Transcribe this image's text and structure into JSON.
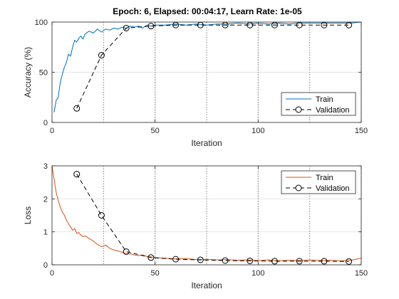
{
  "window": {
    "title": "Epoch: 6, Elapsed: 00:04:17, Learn Rate: 1e-05"
  },
  "colors": {
    "train_accuracy": "#0072BD",
    "train_loss": "#D95319",
    "validation": "#000000",
    "epoch_marker": "#808080",
    "grid": "#E6E6E6",
    "axes": "#262626"
  },
  "chart_data": [
    {
      "type": "line",
      "title": "Epoch: 6, Elapsed: 00:04:17, Learn Rate: 1e-05",
      "xlabel": "Iteration",
      "ylabel": "Accuracy (%)",
      "xlim": [
        0,
        150
      ],
      "ylim": [
        0,
        100
      ],
      "xticks": [
        0,
        50,
        100,
        150
      ],
      "yticks": [
        0,
        50,
        100
      ],
      "grid": true,
      "epoch_boundaries": [
        25,
        50,
        75,
        100,
        125,
        150
      ],
      "legend": {
        "placement": "lower-right",
        "entries": [
          "Train",
          "Validation"
        ]
      },
      "series": [
        {
          "name": "Train",
          "style": "solid",
          "x": [
            1,
            2,
            3,
            4,
            5,
            6,
            7,
            8,
            9,
            10,
            11,
            12,
            13,
            14,
            15,
            16,
            18,
            20,
            22,
            24,
            26,
            28,
            30,
            32,
            34,
            36,
            38,
            40,
            42,
            44,
            46,
            48,
            50,
            55,
            60,
            65,
            70,
            75,
            80,
            85,
            90,
            95,
            100,
            105,
            110,
            115,
            120,
            125,
            130,
            135,
            140,
            145,
            150
          ],
          "y": [
            10,
            22,
            25,
            40,
            48,
            55,
            60,
            68,
            66,
            75,
            82,
            80,
            84,
            86,
            83,
            88,
            91,
            89,
            93,
            90,
            93,
            92,
            94,
            93,
            95,
            94,
            96,
            95,
            96,
            94,
            97,
            96,
            97,
            97,
            98,
            97,
            98,
            97,
            98,
            98,
            99,
            98,
            99,
            98,
            99,
            98,
            99,
            99,
            99,
            99,
            99,
            99,
            100
          ]
        },
        {
          "name": "Validation",
          "style": "dashed",
          "marker": "circle",
          "x": [
            12,
            24,
            36,
            48,
            60,
            72,
            84,
            96,
            108,
            120,
            132,
            144
          ],
          "y": [
            14,
            67,
            94,
            96,
            97,
            97,
            97,
            97,
            97,
            97,
            97,
            97
          ]
        }
      ]
    },
    {
      "type": "line",
      "xlabel": "Iteration",
      "ylabel": "Loss",
      "xlim": [
        0,
        150
      ],
      "ylim": [
        0,
        3
      ],
      "xticks": [
        0,
        50,
        100,
        150
      ],
      "yticks": [
        0,
        1,
        2,
        3
      ],
      "grid": true,
      "epoch_boundaries": [
        25,
        50,
        75,
        100,
        125,
        150
      ],
      "legend": {
        "placement": "top-right",
        "entries": [
          "Train",
          "Validation"
        ]
      },
      "series": [
        {
          "name": "Train",
          "style": "solid",
          "x": [
            0,
            1,
            2,
            3,
            4,
            5,
            6,
            7,
            8,
            9,
            10,
            11,
            12,
            13,
            14,
            15,
            16,
            18,
            20,
            22,
            24,
            26,
            28,
            30,
            32,
            34,
            36,
            38,
            40,
            42,
            44,
            46,
            48,
            50,
            55,
            60,
            65,
            70,
            75,
            80,
            85,
            90,
            95,
            100,
            105,
            110,
            115,
            120,
            125,
            130,
            135,
            140,
            145,
            150
          ],
          "y": [
            3.0,
            2.6,
            2.2,
            1.95,
            1.75,
            1.6,
            1.5,
            1.35,
            1.25,
            1.15,
            1.05,
            1.1,
            0.95,
            0.98,
            0.9,
            0.85,
            0.88,
            0.8,
            0.72,
            0.62,
            0.55,
            0.6,
            0.5,
            0.45,
            0.42,
            0.38,
            0.35,
            0.33,
            0.3,
            0.28,
            0.3,
            0.25,
            0.24,
            0.22,
            0.2,
            0.18,
            0.19,
            0.16,
            0.17,
            0.15,
            0.16,
            0.14,
            0.15,
            0.13,
            0.15,
            0.12,
            0.14,
            0.13,
            0.15,
            0.13,
            0.14,
            0.12,
            0.14,
            0.2
          ]
        },
        {
          "name": "Validation",
          "style": "dashed",
          "marker": "circle",
          "x": [
            12,
            24,
            36,
            48,
            60,
            72,
            84,
            96,
            108,
            120,
            132,
            144
          ],
          "y": [
            2.75,
            1.5,
            0.4,
            0.22,
            0.17,
            0.15,
            0.13,
            0.12,
            0.11,
            0.11,
            0.11,
            0.1
          ]
        }
      ]
    }
  ]
}
